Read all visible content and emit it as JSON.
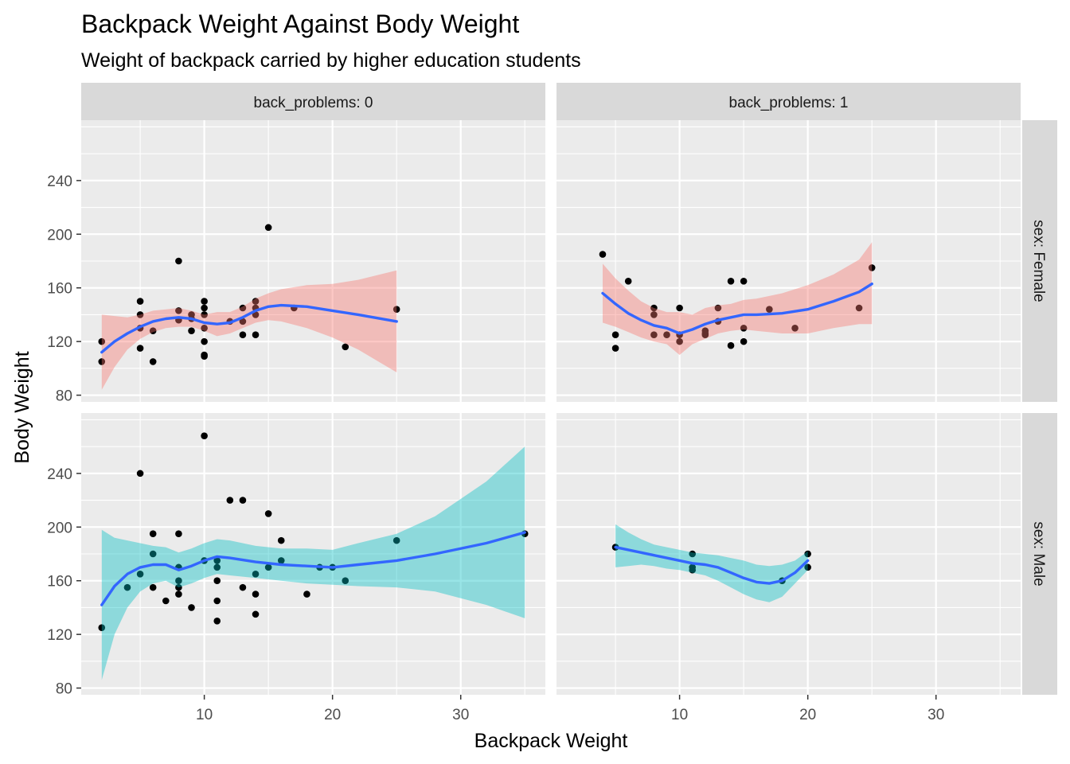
{
  "chart_data": {
    "type": "scatter",
    "title": "Backpack Weight Against Body Weight",
    "subtitle": "Weight of backpack carried by higher education students",
    "xlabel": "Backpack Weight",
    "ylabel": "Body Weight",
    "xlim": [
      0.4,
      36.6
    ],
    "ylim": [
      75,
      285
    ],
    "x_ticks": [
      10,
      20,
      30
    ],
    "y_ticks": [
      80,
      120,
      160,
      200,
      240
    ],
    "grid": true,
    "legend": "none",
    "colors": {
      "panel_bg": "#ebebeb",
      "strip_bg": "#d9d9d9",
      "grid": "#ffffff",
      "point": "#000000",
      "smooth_line": "#3366ff",
      "ribbon_female": "#f8766d",
      "ribbon_male": "#00bfc4"
    },
    "facets": {
      "cols": [
        {
          "label": "back_problems: 0"
        },
        {
          "label": "back_problems: 1"
        }
      ],
      "rows": [
        {
          "label": "sex: Female"
        },
        {
          "label": "sex: Male"
        }
      ]
    },
    "panels": [
      {
        "row": 0,
        "col": 0,
        "points": [
          [
            2,
            120
          ],
          [
            2,
            105
          ],
          [
            5,
            150
          ],
          [
            5,
            140
          ],
          [
            5,
            130
          ],
          [
            5,
            115
          ],
          [
            6,
            128
          ],
          [
            6,
            105
          ],
          [
            8,
            180
          ],
          [
            8,
            143
          ],
          [
            8,
            136
          ],
          [
            9,
            140
          ],
          [
            9,
            137
          ],
          [
            9,
            128
          ],
          [
            10,
            150
          ],
          [
            10,
            145
          ],
          [
            10,
            140
          ],
          [
            10,
            130
          ],
          [
            10,
            120
          ],
          [
            10,
            110
          ],
          [
            10,
            109
          ],
          [
            12,
            135
          ],
          [
            13,
            145
          ],
          [
            13,
            135
          ],
          [
            13,
            125
          ],
          [
            14,
            150
          ],
          [
            14,
            145
          ],
          [
            14,
            140
          ],
          [
            14,
            125
          ],
          [
            15,
            205
          ],
          [
            17,
            145
          ],
          [
            21,
            116
          ],
          [
            25,
            144
          ]
        ],
        "smooth": [
          [
            2,
            112
          ],
          [
            3,
            120
          ],
          [
            4,
            126
          ],
          [
            5,
            131
          ],
          [
            6,
            135
          ],
          [
            7,
            137
          ],
          [
            8,
            138
          ],
          [
            9,
            137
          ],
          [
            10,
            134
          ],
          [
            11,
            133
          ],
          [
            12,
            134
          ],
          [
            13,
            138
          ],
          [
            14,
            143
          ],
          [
            15,
            146
          ],
          [
            16,
            147
          ],
          [
            18,
            146
          ],
          [
            20,
            143
          ],
          [
            22,
            140
          ],
          [
            25,
            135
          ]
        ],
        "band_lower": [
          [
            2,
            84
          ],
          [
            3,
            101
          ],
          [
            4,
            114
          ],
          [
            5,
            122
          ],
          [
            6,
            127
          ],
          [
            7,
            130
          ],
          [
            8,
            131
          ],
          [
            9,
            131
          ],
          [
            10,
            128
          ],
          [
            11,
            124
          ],
          [
            12,
            126
          ],
          [
            13,
            130
          ],
          [
            14,
            134
          ],
          [
            15,
            136
          ],
          [
            16,
            135
          ],
          [
            18,
            130
          ],
          [
            20,
            123
          ],
          [
            22,
            114
          ],
          [
            25,
            97
          ]
        ],
        "band_upper": [
          [
            2,
            140
          ],
          [
            3,
            139
          ],
          [
            4,
            138
          ],
          [
            5,
            140
          ],
          [
            6,
            143
          ],
          [
            7,
            144
          ],
          [
            8,
            145
          ],
          [
            9,
            143
          ],
          [
            10,
            140
          ],
          [
            11,
            142
          ],
          [
            12,
            142
          ],
          [
            13,
            146
          ],
          [
            14,
            152
          ],
          [
            15,
            156
          ],
          [
            16,
            159
          ],
          [
            18,
            162
          ],
          [
            20,
            163
          ],
          [
            22,
            166
          ],
          [
            25,
            173
          ]
        ]
      },
      {
        "row": 0,
        "col": 1,
        "points": [
          [
            4,
            185
          ],
          [
            5,
            125
          ],
          [
            5,
            115
          ],
          [
            6,
            165
          ],
          [
            8,
            145
          ],
          [
            8,
            140
          ],
          [
            8,
            125
          ],
          [
            9,
            125
          ],
          [
            10,
            145
          ],
          [
            10,
            125
          ],
          [
            10,
            120
          ],
          [
            12,
            128
          ],
          [
            12,
            126
          ],
          [
            12,
            125
          ],
          [
            13,
            145
          ],
          [
            13,
            135
          ],
          [
            14,
            165
          ],
          [
            14,
            117
          ],
          [
            15,
            165
          ],
          [
            15,
            130
          ],
          [
            15,
            120
          ],
          [
            17,
            144
          ],
          [
            19,
            130
          ],
          [
            24,
            145
          ],
          [
            25,
            175
          ]
        ],
        "smooth": [
          [
            4,
            156
          ],
          [
            5,
            148
          ],
          [
            6,
            141
          ],
          [
            7,
            136
          ],
          [
            8,
            132
          ],
          [
            9,
            130
          ],
          [
            10,
            126
          ],
          [
            11,
            129
          ],
          [
            12,
            133
          ],
          [
            13,
            136
          ],
          [
            14,
            138
          ],
          [
            15,
            140
          ],
          [
            16,
            140
          ],
          [
            18,
            141
          ],
          [
            20,
            144
          ],
          [
            22,
            150
          ],
          [
            24,
            157
          ],
          [
            25,
            163
          ]
        ],
        "band_lower": [
          [
            4,
            134
          ],
          [
            5,
            131
          ],
          [
            6,
            127
          ],
          [
            7,
            123
          ],
          [
            8,
            120
          ],
          [
            9,
            118
          ],
          [
            10,
            110
          ],
          [
            11,
            118
          ],
          [
            12,
            122
          ],
          [
            13,
            126
          ],
          [
            14,
            128
          ],
          [
            15,
            129
          ],
          [
            16,
            128
          ],
          [
            18,
            126
          ],
          [
            20,
            126
          ],
          [
            22,
            130
          ],
          [
            24,
            133
          ],
          [
            25,
            133
          ]
        ],
        "band_upper": [
          [
            4,
            178
          ],
          [
            5,
            167
          ],
          [
            6,
            158
          ],
          [
            7,
            150
          ],
          [
            8,
            145
          ],
          [
            9,
            142
          ],
          [
            10,
            142
          ],
          [
            11,
            140
          ],
          [
            12,
            145
          ],
          [
            13,
            147
          ],
          [
            14,
            148
          ],
          [
            15,
            151
          ],
          [
            16,
            152
          ],
          [
            18,
            156
          ],
          [
            20,
            162
          ],
          [
            22,
            170
          ],
          [
            24,
            181
          ],
          [
            25,
            194
          ]
        ]
      },
      {
        "row": 1,
        "col": 0,
        "points": [
          [
            2,
            125
          ],
          [
            4,
            155
          ],
          [
            5,
            240
          ],
          [
            5,
            165
          ],
          [
            6,
            195
          ],
          [
            6,
            180
          ],
          [
            6,
            155
          ],
          [
            7,
            145
          ],
          [
            8,
            195
          ],
          [
            8,
            170
          ],
          [
            8,
            160
          ],
          [
            8,
            155
          ],
          [
            8,
            150
          ],
          [
            9,
            140
          ],
          [
            10,
            268
          ],
          [
            10,
            175
          ],
          [
            11,
            175
          ],
          [
            11,
            170
          ],
          [
            11,
            160
          ],
          [
            11,
            145
          ],
          [
            11,
            130
          ],
          [
            12,
            220
          ],
          [
            13,
            220
          ],
          [
            13,
            155
          ],
          [
            14,
            165
          ],
          [
            14,
            150
          ],
          [
            14,
            135
          ],
          [
            15,
            210
          ],
          [
            15,
            170
          ],
          [
            16,
            190
          ],
          [
            16,
            175
          ],
          [
            18,
            150
          ],
          [
            19,
            170
          ],
          [
            20,
            170
          ],
          [
            21,
            160
          ],
          [
            25,
            190
          ],
          [
            35,
            195
          ]
        ],
        "smooth": [
          [
            2,
            142
          ],
          [
            3,
            156
          ],
          [
            4,
            165
          ],
          [
            5,
            170
          ],
          [
            6,
            172
          ],
          [
            7,
            172
          ],
          [
            8,
            168
          ],
          [
            9,
            171
          ],
          [
            10,
            175
          ],
          [
            11,
            178
          ],
          [
            12,
            177
          ],
          [
            14,
            174
          ],
          [
            16,
            172
          ],
          [
            18,
            171
          ],
          [
            20,
            170
          ],
          [
            22,
            172
          ],
          [
            25,
            175
          ],
          [
            28,
            180
          ],
          [
            32,
            188
          ],
          [
            35,
            196
          ]
        ],
        "band_lower": [
          [
            2,
            86
          ],
          [
            3,
            120
          ],
          [
            4,
            140
          ],
          [
            5,
            152
          ],
          [
            6,
            158
          ],
          [
            7,
            160
          ],
          [
            8,
            155
          ],
          [
            9,
            158
          ],
          [
            10,
            162
          ],
          [
            11,
            165
          ],
          [
            12,
            164
          ],
          [
            14,
            162
          ],
          [
            16,
            160
          ],
          [
            18,
            158
          ],
          [
            20,
            157
          ],
          [
            22,
            156
          ],
          [
            25,
            155
          ],
          [
            28,
            152
          ],
          [
            32,
            142
          ],
          [
            35,
            132
          ]
        ],
        "band_upper": [
          [
            2,
            198
          ],
          [
            3,
            192
          ],
          [
            4,
            190
          ],
          [
            5,
            188
          ],
          [
            6,
            186
          ],
          [
            7,
            185
          ],
          [
            8,
            181
          ],
          [
            9,
            184
          ],
          [
            10,
            188
          ],
          [
            11,
            191
          ],
          [
            12,
            190
          ],
          [
            14,
            186
          ],
          [
            16,
            184
          ],
          [
            18,
            184
          ],
          [
            20,
            183
          ],
          [
            22,
            188
          ],
          [
            25,
            195
          ],
          [
            28,
            208
          ],
          [
            32,
            234
          ],
          [
            35,
            260
          ]
        ]
      },
      {
        "row": 1,
        "col": 1,
        "points": [
          [
            5,
            185
          ],
          [
            11,
            180
          ],
          [
            11,
            170
          ],
          [
            11,
            168
          ],
          [
            18,
            160
          ],
          [
            20,
            180
          ],
          [
            20,
            170
          ]
        ],
        "smooth": [
          [
            5,
            185
          ],
          [
            6,
            183
          ],
          [
            7,
            181
          ],
          [
            8,
            179
          ],
          [
            9,
            177
          ],
          [
            10,
            175
          ],
          [
            11,
            173
          ],
          [
            12,
            172
          ],
          [
            13,
            170
          ],
          [
            14,
            166
          ],
          [
            15,
            162
          ],
          [
            16,
            159
          ],
          [
            17,
            158
          ],
          [
            18,
            160
          ],
          [
            19,
            166
          ],
          [
            20,
            175
          ]
        ],
        "band_lower": [
          [
            5,
            170
          ],
          [
            6,
            171
          ],
          [
            7,
            172
          ],
          [
            8,
            171
          ],
          [
            9,
            169
          ],
          [
            10,
            168
          ],
          [
            11,
            166
          ],
          [
            12,
            164
          ],
          [
            13,
            160
          ],
          [
            14,
            155
          ],
          [
            15,
            150
          ],
          [
            16,
            146
          ],
          [
            17,
            144
          ],
          [
            18,
            148
          ],
          [
            19,
            158
          ],
          [
            20,
            168
          ]
        ],
        "band_upper": [
          [
            5,
            202
          ],
          [
            6,
            196
          ],
          [
            7,
            191
          ],
          [
            8,
            187
          ],
          [
            9,
            185
          ],
          [
            10,
            183
          ],
          [
            11,
            181
          ],
          [
            12,
            180
          ],
          [
            13,
            179
          ],
          [
            14,
            177
          ],
          [
            15,
            175
          ],
          [
            16,
            172
          ],
          [
            17,
            171
          ],
          [
            18,
            172
          ],
          [
            19,
            175
          ],
          [
            20,
            182
          ]
        ]
      }
    ]
  }
}
